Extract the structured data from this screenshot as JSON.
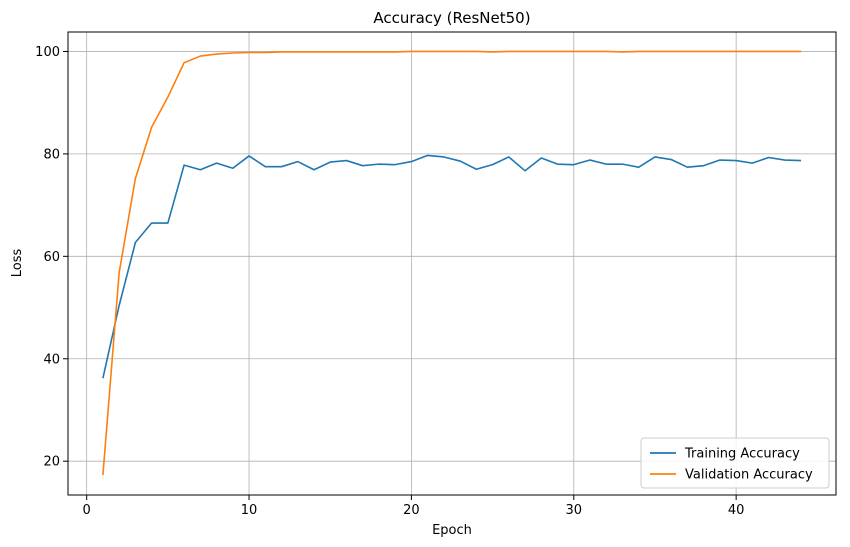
{
  "chart_data": {
    "type": "line",
    "title": "Accuracy (ResNet50)",
    "xlabel": "Epoch",
    "ylabel": "Loss",
    "xlim": [
      -1.15,
      46.15
    ],
    "ylim": [
      13.4,
      103.8
    ],
    "xticks": [
      0,
      10,
      20,
      30,
      40
    ],
    "yticks": [
      20,
      40,
      60,
      80,
      100
    ],
    "grid": true,
    "legend_position": "bottom-right",
    "x": [
      1,
      2,
      3,
      4,
      5,
      6,
      7,
      8,
      9,
      10,
      11,
      12,
      13,
      14,
      15,
      16,
      17,
      18,
      19,
      20,
      21,
      22,
      23,
      24,
      25,
      26,
      27,
      28,
      29,
      30,
      31,
      32,
      33,
      34,
      35,
      36,
      37,
      38,
      39,
      40,
      41,
      42,
      43,
      44
    ],
    "series": [
      {
        "name": "Training Accuracy",
        "color": "#1f77b4",
        "values": [
          36.2,
          50.4,
          62.7,
          66.5,
          66.5,
          77.8,
          76.9,
          78.2,
          77.2,
          79.6,
          77.5,
          77.5,
          78.5,
          76.9,
          78.4,
          78.7,
          77.7,
          78.0,
          77.9,
          78.5,
          79.7,
          79.4,
          78.6,
          77.0,
          77.9,
          79.4,
          76.7,
          79.2,
          78.0,
          77.9,
          78.8,
          78.0,
          78.0,
          77.4,
          79.4,
          78.9,
          77.4,
          77.7,
          78.8,
          78.7,
          78.2,
          79.3,
          78.8,
          78.7
        ]
      },
      {
        "name": "Validation Accuracy",
        "color": "#ff7f0e",
        "values": [
          17.3,
          56.8,
          75.2,
          85.2,
          91.1,
          97.8,
          99.1,
          99.5,
          99.7,
          99.8,
          99.8,
          99.9,
          99.9,
          99.9,
          99.9,
          99.9,
          99.9,
          99.9,
          99.9,
          100.0,
          100.0,
          100.0,
          100.0,
          100.0,
          99.9,
          100.0,
          100.0,
          100.0,
          100.0,
          100.0,
          100.0,
          100.0,
          99.9,
          100.0,
          100.0,
          100.0,
          100.0,
          100.0,
          100.0,
          100.0,
          100.0,
          100.0,
          100.0,
          100.0
        ]
      }
    ]
  }
}
